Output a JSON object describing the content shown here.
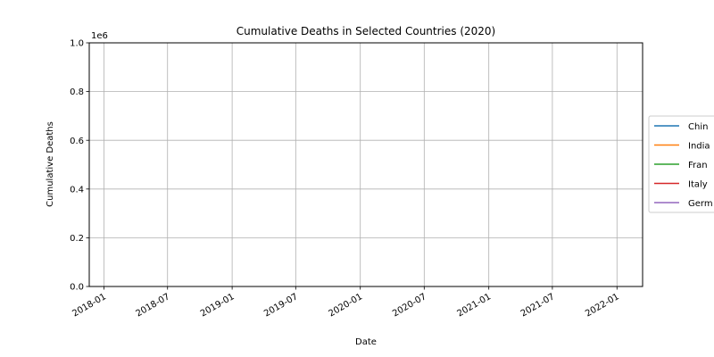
{
  "chart_data": {
    "type": "line",
    "title": "Cumulative Deaths in Selected Countries (2020)",
    "xlabel": "Date",
    "ylabel": "Cumulative Deaths",
    "y_offset_text": "1e6",
    "y_ticks": [
      0.0,
      0.2,
      0.4,
      0.6,
      0.8,
      1.0
    ],
    "y_tick_labels": [
      "0.0",
      "0.2",
      "0.4",
      "0.6",
      "0.8",
      "1.0"
    ],
    "ylim": [
      0.0,
      1.0
    ],
    "x_ticks": [
      "2018-01",
      "2018-07",
      "2019-01",
      "2019-07",
      "2020-01",
      "2020-07",
      "2021-01",
      "2021-07",
      "2022-01"
    ],
    "xlim": [
      "2017-11-20",
      "2022-03-15"
    ],
    "grid": true,
    "legend_placement": "right, outside",
    "series": [
      {
        "name": "China",
        "legend_text": "Chin",
        "color": "#1f77b4",
        "values": []
      },
      {
        "name": "India",
        "legend_text": "India",
        "color": "#ff7f0e",
        "values": []
      },
      {
        "name": "France",
        "legend_text": "Fran",
        "color": "#2ca02c",
        "values": []
      },
      {
        "name": "Italy",
        "legend_text": "Italy",
        "color": "#d62728",
        "values": []
      },
      {
        "name": "Germany",
        "legend_text": "Germ",
        "color": "#9467bd",
        "values": []
      }
    ]
  }
}
